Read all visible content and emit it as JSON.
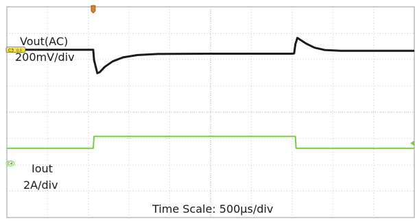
{
  "chart_data": {
    "type": "line",
    "title": "",
    "xlabel": "",
    "ylabel": "",
    "grid": true,
    "grid_divisions": {
      "horizontal": 10,
      "vertical": 8
    },
    "annotations": {
      "vout_title": "Vout(AC)",
      "vout_scale": "200mV/div",
      "iout_title": "Iout",
      "iout_scale": "2A/div",
      "time_scale": "Time Scale: 500µs/div"
    },
    "channel_markers": {
      "vout": "C3",
      "vout_level": "0.0",
      "iout": "C4"
    },
    "x_range_div": [
      0,
      10
    ],
    "y_range_div": [
      0,
      8
    ],
    "series": [
      {
        "key": "vout",
        "color": "#1a1a1a",
        "points": [
          [
            0,
            6.37
          ],
          [
            2.12,
            6.37
          ],
          [
            2.14,
            5.98
          ],
          [
            2.22,
            5.48
          ],
          [
            2.28,
            5.52
          ],
          [
            2.4,
            5.72
          ],
          [
            2.6,
            5.93
          ],
          [
            2.85,
            6.08
          ],
          [
            3.2,
            6.17
          ],
          [
            3.7,
            6.21
          ],
          [
            5.0,
            6.22
          ],
          [
            7.0,
            6.22
          ],
          [
            7.05,
            6.23
          ],
          [
            7.08,
            6.58
          ],
          [
            7.13,
            6.82
          ],
          [
            7.2,
            6.75
          ],
          [
            7.35,
            6.6
          ],
          [
            7.55,
            6.45
          ],
          [
            7.8,
            6.36
          ],
          [
            8.2,
            6.33
          ],
          [
            10,
            6.33
          ]
        ]
      },
      {
        "key": "iout",
        "color": "#7ac943",
        "points": [
          [
            0,
            2.63
          ],
          [
            2.12,
            2.63
          ],
          [
            2.14,
            3.08
          ],
          [
            7.08,
            3.08
          ],
          [
            7.1,
            2.63
          ],
          [
            10,
            2.63
          ]
        ]
      }
    ]
  }
}
